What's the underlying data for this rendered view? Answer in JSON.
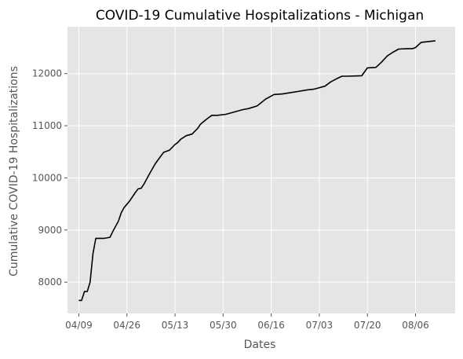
{
  "chart_data": {
    "type": "line",
    "title": "COVID-19 Cumulative Hospitalizations - Michigan",
    "xlabel": "Dates",
    "ylabel": "Cumulative COVID-19 Hospitalizations",
    "xlim": [
      "2020-04-05",
      "2020-08-20"
    ],
    "ylim": [
      7400,
      12900
    ],
    "x_ticks": [
      "2020-04-09",
      "2020-04-26",
      "2020-05-13",
      "2020-05-30",
      "2020-06-16",
      "2020-07-03",
      "2020-07-20",
      "2020-08-06"
    ],
    "x_tick_labels": [
      "04/09",
      "04/26",
      "05/13",
      "05/30",
      "06/16",
      "07/03",
      "07/20",
      "08/06"
    ],
    "y_ticks": [
      8000,
      9000,
      10000,
      11000,
      12000
    ],
    "y_tick_labels": [
      "8000",
      "9000",
      "10000",
      "11000",
      "12000"
    ],
    "grid": true,
    "background": "#e5e5e5",
    "grid_color": "#ffffff",
    "line_color": "#000000",
    "series": [
      {
        "x": [
          "2020-04-09",
          "2020-04-10",
          "2020-04-11",
          "2020-04-12",
          "2020-04-13",
          "2020-04-14",
          "2020-04-15",
          "2020-04-16",
          "2020-04-18",
          "2020-04-20",
          "2020-04-21",
          "2020-04-23",
          "2020-04-24",
          "2020-04-25",
          "2020-04-27",
          "2020-04-29",
          "2020-04-30",
          "2020-05-01",
          "2020-05-02",
          "2020-05-04",
          "2020-05-06",
          "2020-05-08",
          "2020-05-09",
          "2020-05-11",
          "2020-05-13",
          "2020-05-14",
          "2020-05-15",
          "2020-05-17",
          "2020-05-19",
          "2020-05-21",
          "2020-05-22",
          "2020-05-24",
          "2020-05-26",
          "2020-05-28",
          "2020-05-31",
          "2020-06-06",
          "2020-06-08",
          "2020-06-11",
          "2020-06-14",
          "2020-06-17",
          "2020-06-20",
          "2020-06-29",
          "2020-07-01",
          "2020-07-05",
          "2020-07-07",
          "2020-07-09",
          "2020-07-11",
          "2020-07-13",
          "2020-07-18",
          "2020-07-20",
          "2020-07-23",
          "2020-07-25",
          "2020-07-27",
          "2020-07-29",
          "2020-07-31",
          "2020-08-03",
          "2020-08-05",
          "2020-08-06",
          "2020-08-08",
          "2020-08-13"
        ],
        "values": [
          7650,
          7650,
          7820,
          7820,
          8000,
          8550,
          8840,
          8840,
          8840,
          8860,
          8970,
          9170,
          9330,
          9430,
          9560,
          9720,
          9790,
          9800,
          9880,
          10080,
          10270,
          10420,
          10490,
          10530,
          10640,
          10680,
          10740,
          10810,
          10840,
          10950,
          11030,
          11120,
          11200,
          11200,
          11220,
          11310,
          11330,
          11380,
          11510,
          11600,
          11610,
          11690,
          11700,
          11760,
          11840,
          11900,
          11950,
          11950,
          11960,
          12110,
          12120,
          12220,
          12340,
          12410,
          12470,
          12480,
          12480,
          12500,
          12600,
          12630
        ]
      }
    ]
  }
}
